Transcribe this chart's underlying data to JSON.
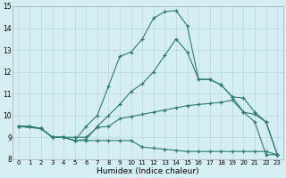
{
  "xlabel": "Humidex (Indice chaleur)",
  "bg_color": "#d4eef4",
  "grid_color": "#b8d8e0",
  "line_color": "#2d7a6e",
  "xlim": [
    -0.5,
    23.5
  ],
  "ylim": [
    8,
    15
  ],
  "xticks": [
    0,
    1,
    2,
    3,
    4,
    5,
    6,
    7,
    8,
    9,
    10,
    11,
    12,
    13,
    14,
    15,
    16,
    17,
    18,
    19,
    20,
    21,
    22,
    23
  ],
  "yticks": [
    8,
    9,
    10,
    11,
    12,
    13,
    14,
    15
  ],
  "line_bot_x": [
    0,
    1,
    2,
    3,
    4,
    5,
    6,
    7,
    8,
    9,
    10,
    11,
    12,
    13,
    14,
    15,
    16,
    17,
    18,
    19,
    20,
    21,
    22,
    23
  ],
  "line_bot_y": [
    9.5,
    9.5,
    9.4,
    9.0,
    9.0,
    8.85,
    8.85,
    8.85,
    8.85,
    8.85,
    8.85,
    8.55,
    8.5,
    8.45,
    8.4,
    8.35,
    8.35,
    8.35,
    8.35,
    8.35,
    8.35,
    8.35,
    8.35,
    8.2
  ],
  "line_slow_x": [
    0,
    1,
    2,
    3,
    4,
    5,
    6,
    7,
    8,
    9,
    10,
    11,
    12,
    13,
    14,
    15,
    16,
    17,
    18,
    19,
    20,
    21,
    22,
    23
  ],
  "line_slow_y": [
    9.5,
    9.5,
    9.4,
    9.0,
    9.0,
    9.0,
    9.0,
    9.45,
    9.5,
    9.85,
    9.95,
    10.05,
    10.15,
    10.25,
    10.35,
    10.45,
    10.5,
    10.55,
    10.6,
    10.7,
    10.15,
    10.05,
    9.7,
    8.2
  ],
  "line_med_x": [
    0,
    2,
    3,
    4,
    5,
    6,
    7,
    8,
    9,
    10,
    11,
    12,
    13,
    14,
    15,
    16,
    17,
    18,
    19,
    20,
    21,
    22,
    23
  ],
  "line_med_y": [
    9.5,
    9.4,
    9.0,
    9.0,
    8.85,
    8.9,
    9.5,
    10.0,
    10.5,
    11.1,
    11.45,
    12.0,
    12.75,
    13.5,
    12.9,
    11.65,
    11.65,
    11.4,
    10.85,
    10.8,
    10.15,
    9.7,
    8.2
  ],
  "line_main_x": [
    0,
    2,
    3,
    4,
    5,
    6,
    7,
    8,
    9,
    10,
    11,
    12,
    13,
    14,
    15,
    16,
    17,
    18,
    19,
    20,
    21,
    22,
    23
  ],
  "line_main_y": [
    9.5,
    9.4,
    9.0,
    9.0,
    8.85,
    9.5,
    10.0,
    11.35,
    12.7,
    12.9,
    13.5,
    14.45,
    14.75,
    14.8,
    14.1,
    11.65,
    11.65,
    11.4,
    10.85,
    10.15,
    9.7,
    8.2,
    8.2
  ]
}
